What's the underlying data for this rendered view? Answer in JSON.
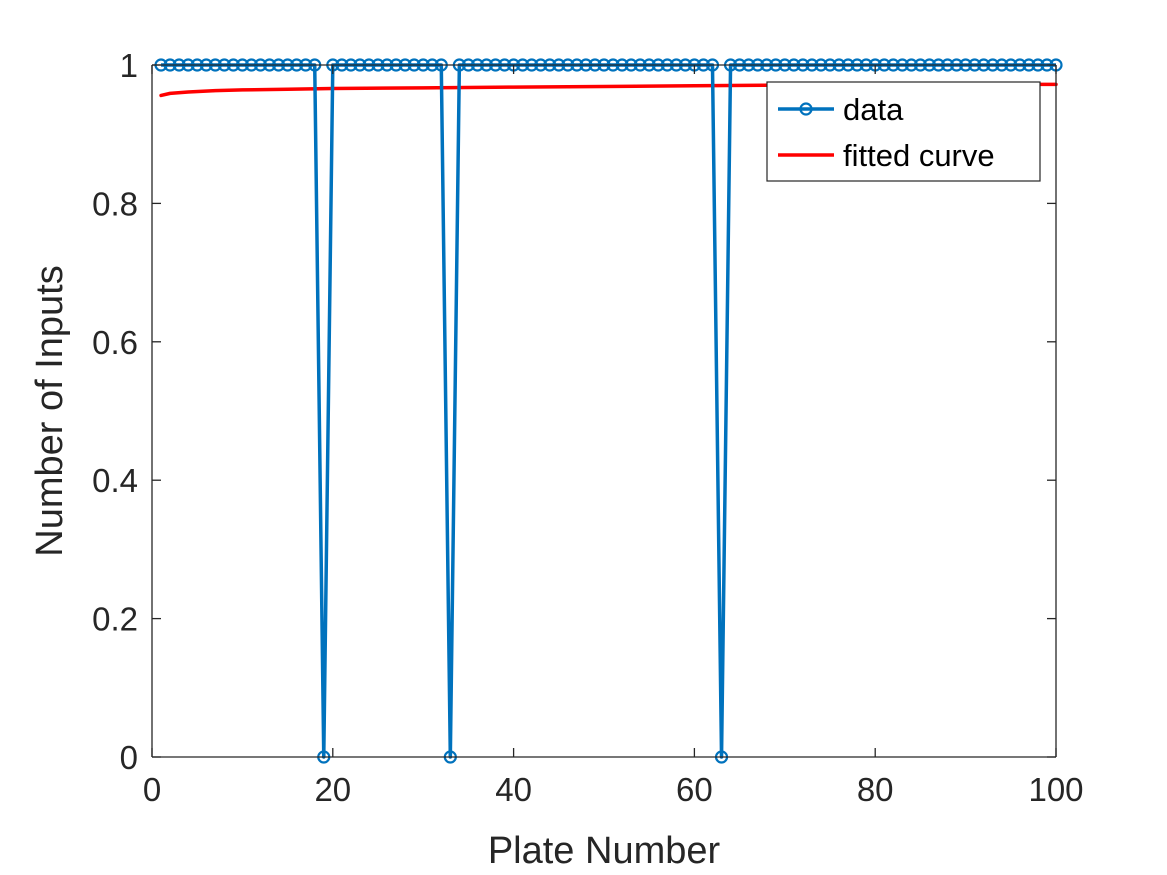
{
  "chart_data": {
    "type": "line",
    "xlabel": "Plate Number",
    "ylabel": "Number of Inputs",
    "xlim": [
      0,
      100
    ],
    "ylim": [
      0,
      1
    ],
    "xticks": [
      0,
      20,
      40,
      60,
      80,
      100
    ],
    "yticks": [
      0,
      0.2,
      0.4,
      0.6,
      0.8,
      1
    ],
    "xtick_labels": [
      "0",
      "20",
      "40",
      "60",
      "80",
      "100"
    ],
    "ytick_labels": [
      "0",
      "0.2",
      "0.4",
      "0.6",
      "0.8",
      "1"
    ],
    "grid": false,
    "box": true,
    "legend_position": "top-right",
    "series": [
      {
        "name": "data",
        "color": "#0072BD",
        "marker": "circle",
        "x": [
          1,
          2,
          3,
          4,
          5,
          6,
          7,
          8,
          9,
          10,
          11,
          12,
          13,
          14,
          15,
          16,
          17,
          18,
          19,
          20,
          21,
          22,
          23,
          24,
          25,
          26,
          27,
          28,
          29,
          30,
          31,
          32,
          33,
          34,
          35,
          36,
          37,
          38,
          39,
          40,
          41,
          42,
          43,
          44,
          45,
          46,
          47,
          48,
          49,
          50,
          51,
          52,
          53,
          54,
          55,
          56,
          57,
          58,
          59,
          60,
          61,
          62,
          63,
          64,
          65,
          66,
          67,
          68,
          69,
          70,
          71,
          72,
          73,
          74,
          75,
          76,
          77,
          78,
          79,
          80,
          81,
          82,
          83,
          84,
          85,
          86,
          87,
          88,
          89,
          90,
          91,
          92,
          93,
          94,
          95,
          96,
          97,
          98,
          99,
          100
        ],
        "values": [
          1,
          1,
          1,
          1,
          1,
          1,
          1,
          1,
          1,
          1,
          1,
          1,
          1,
          1,
          1,
          1,
          1,
          1,
          0,
          1,
          1,
          1,
          1,
          1,
          1,
          1,
          1,
          1,
          1,
          1,
          1,
          1,
          0,
          1,
          1,
          1,
          1,
          1,
          1,
          1,
          1,
          1,
          1,
          1,
          1,
          1,
          1,
          1,
          1,
          1,
          1,
          1,
          1,
          1,
          1,
          1,
          1,
          1,
          1,
          1,
          1,
          1,
          0,
          1,
          1,
          1,
          1,
          1,
          1,
          1,
          1,
          1,
          1,
          1,
          1,
          1,
          1,
          1,
          1,
          1,
          1,
          1,
          1,
          1,
          1,
          1,
          1,
          1,
          1,
          1,
          1,
          1,
          1,
          1,
          1,
          1,
          1,
          1,
          1,
          1
        ]
      },
      {
        "name": "fitted curve",
        "color": "#FF0000",
        "marker": "none",
        "x": [
          1,
          2,
          4,
          7,
          10,
          15,
          20,
          30,
          40,
          50,
          60,
          70,
          80,
          90,
          100
        ],
        "values": [
          0.956,
          0.959,
          0.961,
          0.963,
          0.964,
          0.965,
          0.966,
          0.967,
          0.968,
          0.969,
          0.97,
          0.971,
          0.971,
          0.972,
          0.972
        ]
      }
    ]
  }
}
